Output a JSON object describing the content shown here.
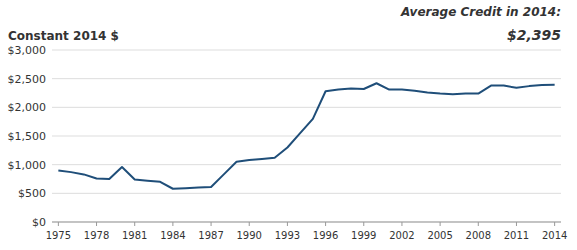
{
  "chart_data": {
    "type": "line",
    "y_label": "Constant 2014 $",
    "annotations": [
      "Average Credit in 2014:",
      "$2,395"
    ],
    "x": [
      1975,
      1976,
      1977,
      1978,
      1979,
      1980,
      1981,
      1982,
      1983,
      1984,
      1985,
      1986,
      1987,
      1988,
      1989,
      1990,
      1991,
      1992,
      1993,
      1994,
      1995,
      1996,
      1997,
      1998,
      1999,
      2000,
      2001,
      2002,
      2003,
      2004,
      2005,
      2006,
      2007,
      2008,
      2009,
      2010,
      2011,
      2012,
      2013,
      2014
    ],
    "values": [
      900,
      870,
      830,
      760,
      750,
      960,
      740,
      720,
      700,
      580,
      590,
      600,
      610,
      830,
      1050,
      1080,
      1100,
      1120,
      1300,
      1550,
      1800,
      2280,
      2310,
      2330,
      2320,
      2420,
      2310,
      2310,
      2290,
      2260,
      2240,
      2230,
      2240,
      2240,
      2380,
      2380,
      2340,
      2370,
      2390,
      2395
    ],
    "color": "#1F4E79",
    "xlim": [
      1974.5,
      2014.5
    ],
    "xticks": [
      1975,
      1978,
      1981,
      1984,
      1987,
      1990,
      1993,
      1996,
      1999,
      2002,
      2005,
      2008,
      2011,
      2014
    ],
    "ylim": [
      0,
      3000
    ],
    "yticks": [
      {
        "value": 0,
        "label": "$0"
      },
      {
        "value": 500,
        "label": "$500"
      },
      {
        "value": 1000,
        "label": "$1,000"
      },
      {
        "value": 1500,
        "label": "$1,500"
      },
      {
        "value": 2000,
        "label": "$2,000"
      },
      {
        "value": 2500,
        "label": "$2,500"
      },
      {
        "value": 3000,
        "label": "$3,000"
      }
    ],
    "grid": true
  }
}
